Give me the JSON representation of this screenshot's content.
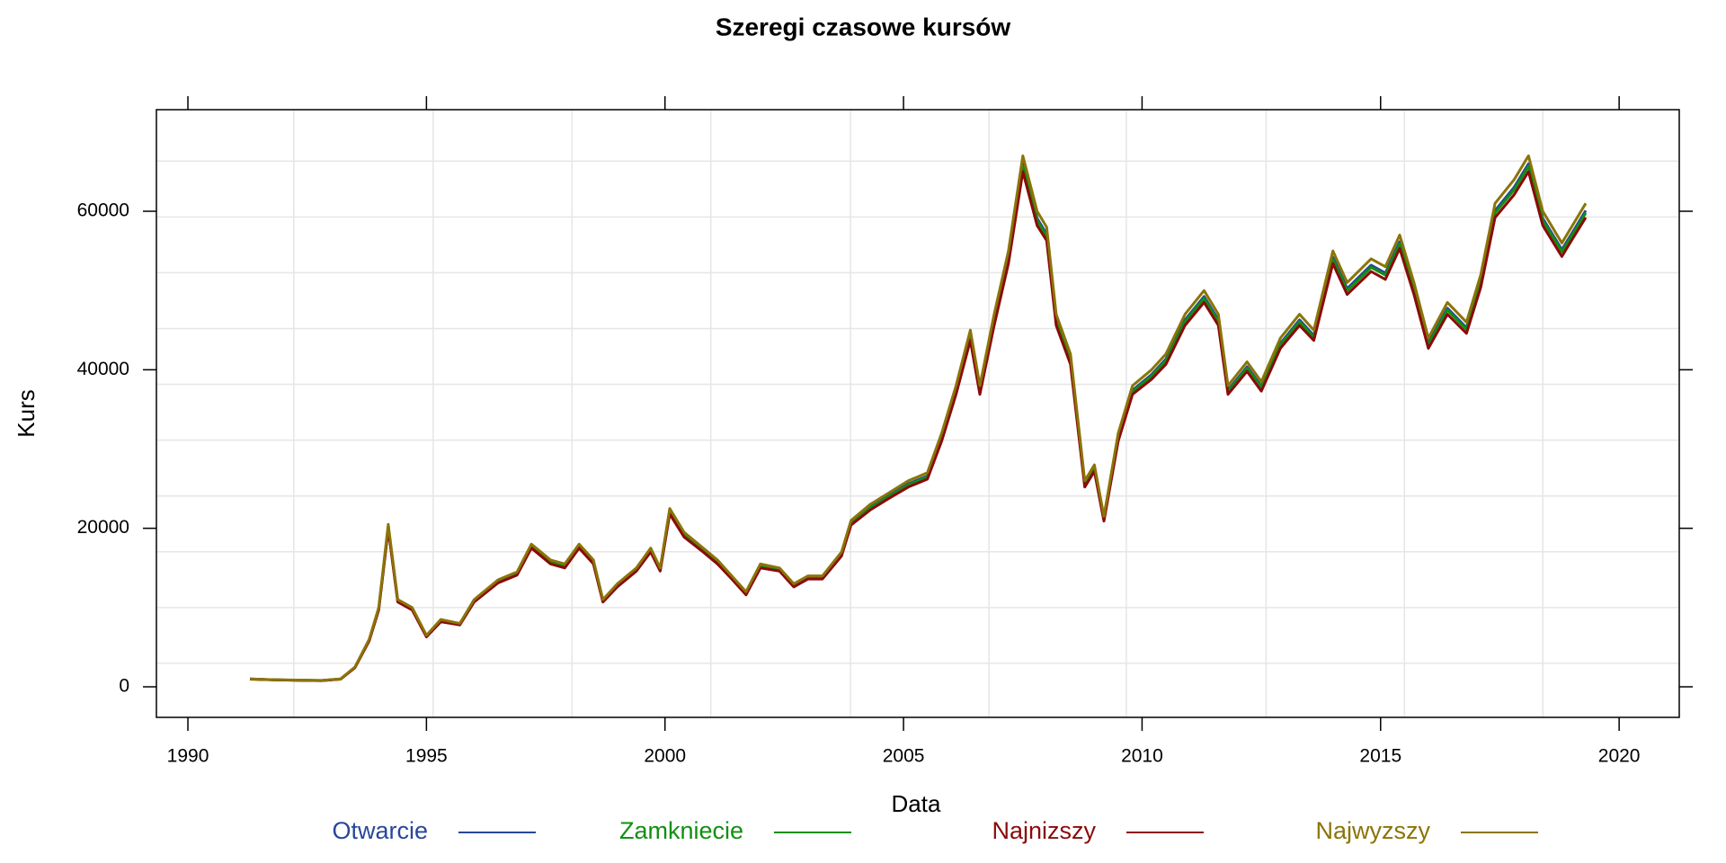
{
  "chart_data": {
    "type": "line",
    "title": "Szeregi czasowe kursów",
    "xlabel": "Data",
    "ylabel": "Kurs",
    "xlim": [
      1989.34,
      2021.26
    ],
    "xticks": [
      1990,
      1995,
      2000,
      2005,
      2010,
      2015,
      2020
    ],
    "ylim": [
      -3856,
      72816
    ],
    "yticks": [
      0,
      20000,
      40000,
      60000
    ],
    "xgrid": [
      1992.22,
      1995.14,
      1998.05,
      2000.96,
      2003.89,
      2006.79,
      2009.67,
      2012.6,
      2015.5,
      2018.4
    ],
    "ygrid": [
      2960,
      10000,
      17040,
      24080,
      31120,
      38160,
      45200,
      52240,
      59280,
      66320
    ],
    "x": [
      1991.3,
      1991.8,
      1992.3,
      1992.8,
      1993.2,
      1993.5,
      1993.8,
      1994.0,
      1994.2,
      1994.4,
      1994.7,
      1995.0,
      1995.3,
      1995.7,
      1996.0,
      1996.5,
      1996.9,
      1997.2,
      1997.6,
      1997.9,
      1998.2,
      1998.5,
      1998.7,
      1999.0,
      1999.4,
      1999.7,
      1999.9,
      2000.1,
      2000.4,
      2000.8,
      2001.1,
      2001.4,
      2001.7,
      2002.0,
      2002.4,
      2002.7,
      2003.0,
      2003.3,
      2003.7,
      2003.9,
      2004.3,
      2004.7,
      2005.1,
      2005.5,
      2005.8,
      2006.1,
      2006.4,
      2006.6,
      2006.9,
      2007.2,
      2007.5,
      2007.8,
      2008.0,
      2008.2,
      2008.5,
      2008.8,
      2009.0,
      2009.2,
      2009.5,
      2009.8,
      2010.2,
      2010.5,
      2010.9,
      2011.3,
      2011.6,
      2011.8,
      2012.2,
      2012.5,
      2012.9,
      2013.3,
      2013.6,
      2014.0,
      2014.3,
      2014.8,
      2015.1,
      2015.4,
      2015.7,
      2016.0,
      2016.4,
      2016.8,
      2017.1,
      2017.4,
      2017.8,
      2018.1,
      2018.4,
      2018.8,
      2019.0,
      2019.3
    ],
    "series": [
      {
        "name": "Otwarcie",
        "color": "#28479a",
        "values": [
          990,
          890,
          840,
          790,
          990,
          2460,
          5910,
          9850,
          20190,
          10840,
          9850,
          6400,
          8370,
          7880,
          10840,
          13300,
          14280,
          17730,
          15760,
          15270,
          17730,
          15760,
          10840,
          12810,
          14780,
          17240,
          14780,
          22160,
          19210,
          17240,
          15760,
          13790,
          11820,
          15270,
          14780,
          12810,
          13790,
          13790,
          16750,
          20690,
          22660,
          24130,
          25610,
          26600,
          31520,
          37430,
          44330,
          37430,
          46300,
          54180,
          66000,
          59100,
          57130,
          46300,
          41370,
          25610,
          27580,
          21180,
          31520,
          37430,
          39400,
          41370,
          46300,
          49250,
          46300,
          37430,
          40390,
          37920,
          43340,
          46300,
          44330,
          54180,
          50240,
          53190,
          52210,
          56150,
          50240,
          43340,
          47770,
          45310,
          51220,
          60090,
          63040,
          66000,
          59100,
          55160,
          57130,
          60090
        ]
      },
      {
        "name": "Zamkniecie",
        "color": "#109010",
        "values": [
          980,
          880,
          830,
          780,
          980,
          2450,
          5880,
          9800,
          20090,
          10780,
          9800,
          6370,
          8330,
          7840,
          10780,
          13230,
          14210,
          17640,
          15680,
          15190,
          17640,
          15680,
          10780,
          12740,
          14700,
          17150,
          14700,
          22050,
          19110,
          17150,
          15680,
          13720,
          11760,
          15190,
          14700,
          12740,
          13720,
          13720,
          16660,
          20580,
          22540,
          24010,
          25480,
          26460,
          31360,
          37240,
          44100,
          37240,
          46060,
          53900,
          65660,
          58800,
          56840,
          46060,
          41160,
          25480,
          27440,
          21070,
          31360,
          37240,
          39200,
          41160,
          46060,
          49000,
          46060,
          37240,
          40180,
          37730,
          43120,
          46060,
          44100,
          53900,
          49980,
          52920,
          51940,
          55860,
          49980,
          43120,
          47530,
          45080,
          50960,
          59780,
          62720,
          65660,
          58800,
          54880,
          56840,
          59780
        ]
      },
      {
        "name": "Najnizszy",
        "color": "#8b0a0a",
        "values": [
          970,
          870,
          820,
          780,
          970,
          2400,
          5800,
          9700,
          19900,
          10700,
          9700,
          6300,
          8200,
          7800,
          10700,
          13100,
          14100,
          17500,
          15500,
          15000,
          17500,
          15500,
          10700,
          12600,
          14600,
          17000,
          14600,
          21800,
          18900,
          17000,
          15500,
          13600,
          11600,
          15000,
          14600,
          12600,
          13600,
          13600,
          16500,
          20400,
          22300,
          23800,
          25200,
          26200,
          31000,
          36900,
          43700,
          36900,
          45600,
          53400,
          65000,
          58200,
          56300,
          45600,
          40700,
          25200,
          27200,
          20900,
          31000,
          36900,
          38800,
          40700,
          45600,
          48500,
          45600,
          36900,
          39800,
          37300,
          42700,
          45600,
          43700,
          53400,
          49500,
          52400,
          51400,
          55300,
          49500,
          42700,
          47000,
          44600,
          50400,
          59200,
          62100,
          65000,
          58200,
          54300,
          56300,
          59200
        ]
      },
      {
        "name": "Najwyzszy",
        "color": "#8b7408",
        "values": [
          1000,
          900,
          850,
          800,
          1000,
          2500,
          6000,
          10000,
          20500,
          11000,
          10000,
          6500,
          8500,
          8000,
          11000,
          13500,
          14500,
          18000,
          16000,
          15500,
          18000,
          16000,
          11000,
          13000,
          15000,
          17500,
          15000,
          22500,
          19500,
          17500,
          16000,
          14000,
          12000,
          15500,
          15000,
          13000,
          14000,
          14000,
          17000,
          21000,
          23000,
          24500,
          26000,
          27000,
          32000,
          38000,
          45000,
          38000,
          47000,
          55000,
          67000,
          60000,
          58000,
          47000,
          42000,
          26000,
          28000,
          21500,
          32000,
          38000,
          40000,
          42000,
          47000,
          50000,
          47000,
          38000,
          41000,
          38500,
          44000,
          47000,
          45000,
          55000,
          51000,
          54000,
          53000,
          57000,
          51000,
          44000,
          48500,
          46000,
          52000,
          61000,
          64000,
          67000,
          60000,
          56000,
          58000,
          61000
        ]
      }
    ]
  }
}
